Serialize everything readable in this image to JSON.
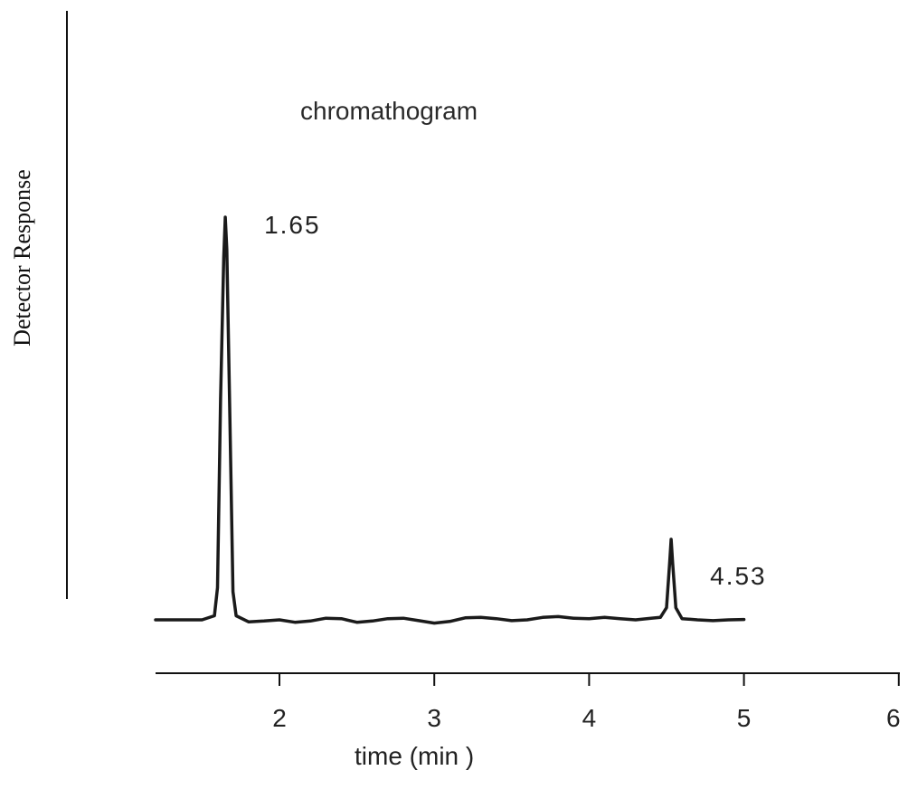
{
  "chart_data": {
    "type": "line",
    "title": "chromathogram",
    "xlabel": "time  (min  )",
    "ylabel": "Detector Response",
    "xlim": [
      1.2,
      6
    ],
    "x_ticks": [
      2,
      3,
      4,
      5,
      6
    ],
    "x_tick_labels": [
      "2",
      "3",
      "4",
      "5",
      "6"
    ],
    "grid": false,
    "legend": "none",
    "peaks": [
      {
        "label": "1.65",
        "retention_time": 1.65,
        "relative_height": 1.0
      },
      {
        "label": "4.53",
        "retention_time": 4.53,
        "relative_height": 0.2
      }
    ],
    "series": [
      {
        "x": [
          1.2,
          1.3,
          1.4,
          1.5,
          1.58,
          1.6,
          1.62,
          1.64,
          1.65,
          1.66,
          1.68,
          1.7,
          1.72,
          1.8,
          1.9,
          2.0,
          2.1,
          2.2,
          2.3,
          2.4,
          2.5,
          2.6,
          2.7,
          2.8,
          2.9,
          3.0,
          3.1,
          3.2,
          3.3,
          3.4,
          3.5,
          3.6,
          3.7,
          3.8,
          3.9,
          4.0,
          4.1,
          4.2,
          4.3,
          4.4,
          4.46,
          4.5,
          4.52,
          4.53,
          4.54,
          4.56,
          4.6,
          4.7,
          4.8,
          4.9,
          5.0
        ],
        "y": [
          0.0,
          0.0,
          0.0,
          0.0,
          0.01,
          0.08,
          0.55,
          0.9,
          1.0,
          0.92,
          0.5,
          0.07,
          0.01,
          -0.005,
          -0.003,
          0.0,
          -0.006,
          -0.003,
          0.004,
          0.003,
          -0.006,
          -0.003,
          0.003,
          0.004,
          -0.002,
          -0.008,
          -0.004,
          0.005,
          0.006,
          0.003,
          -0.002,
          0.0,
          0.006,
          0.008,
          0.004,
          0.003,
          0.006,
          0.003,
          0.0,
          0.004,
          0.006,
          0.03,
          0.14,
          0.2,
          0.14,
          0.03,
          0.003,
          0.0,
          -0.002,
          0.0,
          0.001
        ]
      }
    ]
  }
}
